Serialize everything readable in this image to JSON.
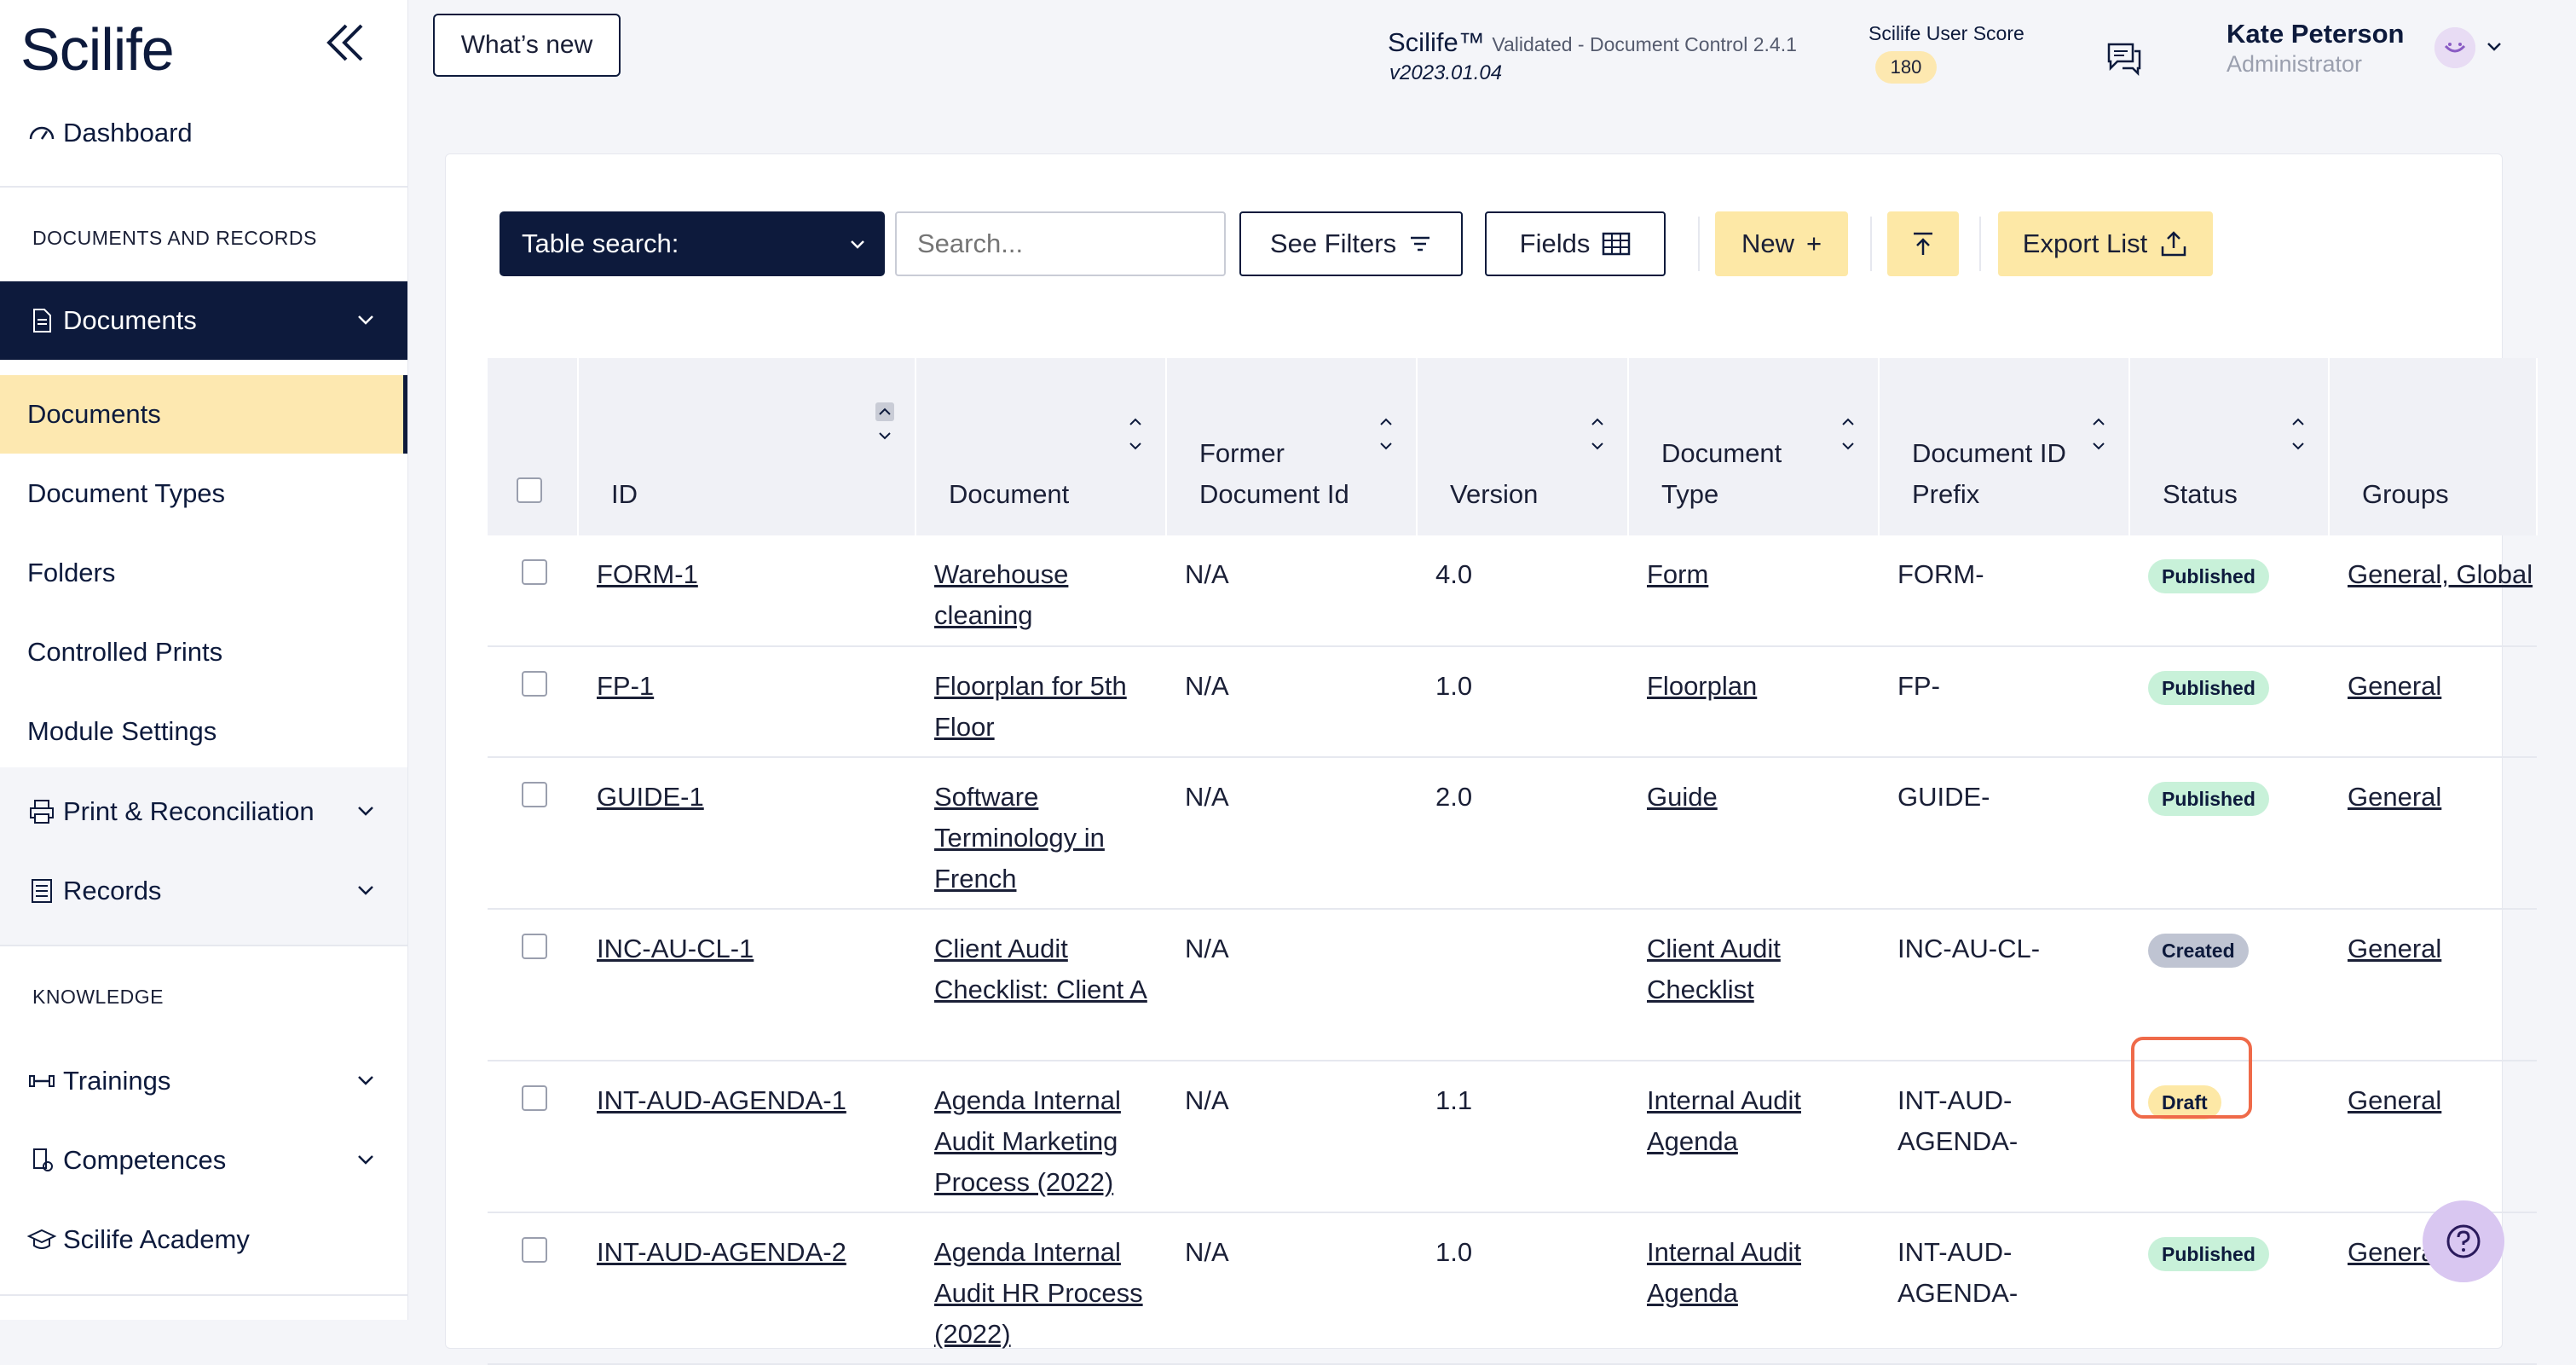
{
  "sidebar": {
    "logo": "Scilife",
    "dashboard": "Dashboard",
    "section_documents": "DOCUMENTS AND RECORDS",
    "documents_group": "Documents",
    "sub_items": [
      "Documents",
      "Document Types",
      "Folders",
      "Controlled Prints",
      "Module Settings"
    ],
    "print_reconciliation": "Print & Reconciliation",
    "records": "Records",
    "section_knowledge": "KNOWLEDGE",
    "trainings": "Trainings",
    "competences": "Competences",
    "academy": "Scilife Academy"
  },
  "header": {
    "whats_new": "What’s new",
    "app_name": "Scilife™",
    "app_subtitle": "Validated - Document Control 2.4.1",
    "version": "v2023.01.04",
    "score_label": "Scilife User Score",
    "score_value": "180",
    "user_name": "Kate Peterson",
    "user_role": "Administrator"
  },
  "toolbar": {
    "table_search": "Table search:",
    "search_placeholder": "Search...",
    "see_filters": "See Filters",
    "fields": "Fields",
    "new": "New",
    "new_plus": "+",
    "export_list": "Export List"
  },
  "table": {
    "columns": [
      "ID",
      "Document",
      "Former Document Id",
      "Version",
      "Document Type",
      "Document ID Prefix",
      "Status",
      "Groups"
    ],
    "rows": [
      {
        "id": "FORM-1",
        "document": "Warehouse cleaning",
        "former": "N/A",
        "version": "4.0",
        "type": "Form",
        "prefix": "FORM-",
        "status": "Published",
        "groups": "General, Global"
      },
      {
        "id": "FP-1",
        "document": "Floorplan for 5th Floor",
        "former": "N/A",
        "version": "1.0",
        "type": "Floorplan",
        "prefix": "FP-",
        "status": "Published",
        "groups": "General"
      },
      {
        "id": "GUIDE-1",
        "document": "Software Terminology in French",
        "former": "N/A",
        "version": "2.0",
        "type": "Guide",
        "prefix": "GUIDE-",
        "status": "Published",
        "groups": "General"
      },
      {
        "id": "INC-AU-CL-1",
        "document": "Client Audit Checklist: Client A",
        "former": "N/A",
        "version": "",
        "type": "Client Audit Checklist",
        "prefix": "INC-AU-CL-",
        "status": "Created",
        "groups": "General"
      },
      {
        "id": "INT-AUD-AGENDA-1",
        "document": "Agenda Internal Audit Marketing Process (2022)",
        "former": "N/A",
        "version": "1.1",
        "type": "Internal Audit Agenda",
        "prefix": "INT-AUD-AGENDA-",
        "status": "Draft",
        "groups": "General"
      },
      {
        "id": "INT-AUD-AGENDA-2",
        "document": "Agenda Internal Audit HR Process (2022)",
        "former": "N/A",
        "version": "1.0",
        "type": "Internal Audit Agenda",
        "prefix": "INT-AUD-AGENDA-",
        "status": "Published",
        "groups": "General"
      }
    ]
  },
  "colors": {
    "navy": "#0d1a3c",
    "accent_yellow": "#fde8a6",
    "published": "#c8f1d9",
    "created": "#bfc4d2",
    "highlight": "#ef6a49"
  }
}
